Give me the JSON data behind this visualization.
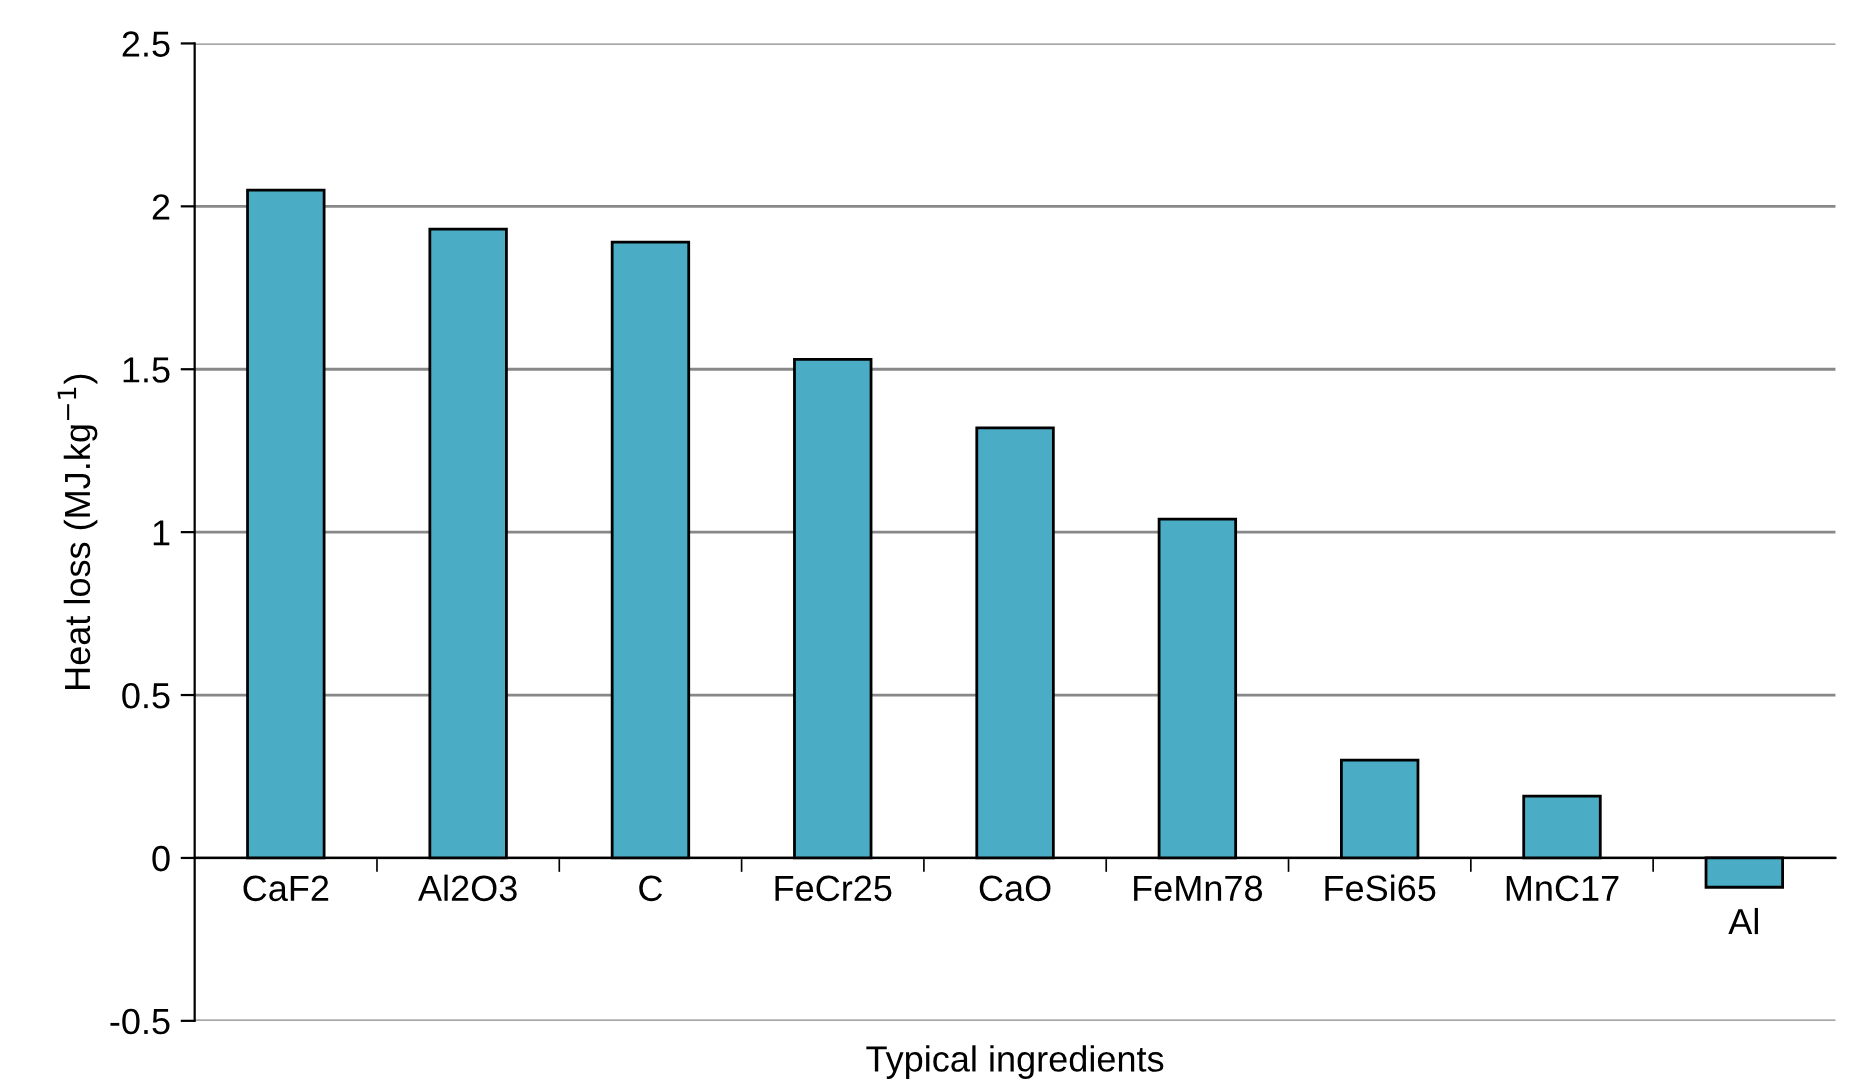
{
  "chart_data": {
    "type": "bar",
    "xlabel": "Typical ingredients",
    "ylabel": "Heat loss (MJ.kg$^{−1}$)",
    "categories": [
      "CaF2",
      "Al2O3",
      "C",
      "FeCr25",
      "CaO",
      "FeMn78",
      "FeSi65",
      "MnC17",
      "Al"
    ],
    "values": [
      2.05,
      1.93,
      1.89,
      1.53,
      1.32,
      1.04,
      0.3,
      0.19,
      -0.09
    ],
    "color": "#4bacc6",
    "ylim": [
      -0.5,
      2.5
    ],
    "yticks": [
      -0.5,
      0,
      0.5,
      1,
      1.5,
      2,
      2.5
    ],
    "grid": "y",
    "legend": false
  }
}
